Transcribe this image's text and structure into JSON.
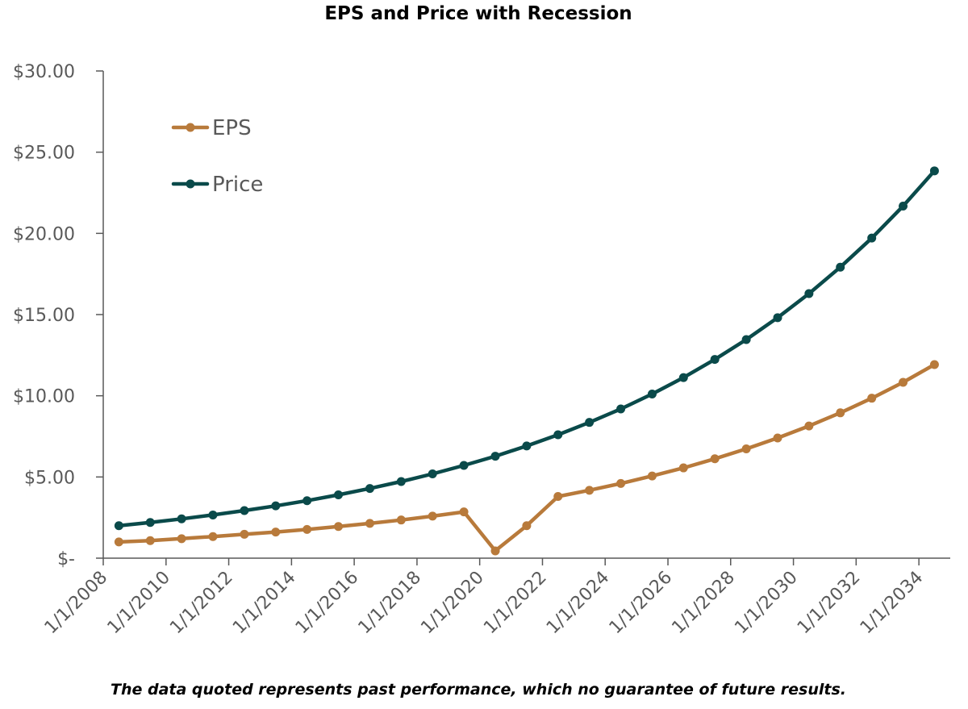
{
  "chart_data": {
    "type": "line",
    "title": "EPS and Price with Recession",
    "xlabel": "",
    "ylabel": "",
    "x_tick_labels": [
      "1/1/2008",
      "1/1/2010",
      "1/1/2012",
      "1/1/2014",
      "1/1/2016",
      "1/1/2018",
      "1/1/2020",
      "1/1/2022",
      "1/1/2024",
      "1/1/2026",
      "1/1/2028",
      "1/1/2030",
      "1/1/2032",
      "1/1/2034"
    ],
    "y_tick_labels": [
      "$-",
      "$5.00",
      "$10.00",
      "$15.00",
      "$20.00",
      "$25.00",
      "$30.00"
    ],
    "ylim": [
      0,
      30
    ],
    "xlim": [
      "1/1/2008",
      "1/1/2035"
    ],
    "grid": false,
    "legend_position": "top-left",
    "x": [
      "2008-07-01",
      "2009-07-01",
      "2010-07-01",
      "2011-07-01",
      "2012-07-01",
      "2013-07-01",
      "2014-07-01",
      "2015-07-01",
      "2016-07-01",
      "2017-07-01",
      "2018-07-01",
      "2019-07-01",
      "2020-07-01",
      "2021-07-01",
      "2022-07-01",
      "2023-07-01",
      "2024-07-01",
      "2025-07-01",
      "2026-07-01",
      "2027-07-01",
      "2028-07-01",
      "2029-07-01",
      "2030-07-01",
      "2031-07-01",
      "2032-07-01",
      "2033-07-01",
      "2034-07-01"
    ],
    "series": [
      {
        "name": "EPS",
        "color": "#B87A3B",
        "values": [
          1.0,
          1.08,
          1.2,
          1.33,
          1.47,
          1.61,
          1.77,
          1.95,
          2.14,
          2.35,
          2.59,
          2.85,
          0.45,
          2.0,
          3.8,
          4.18,
          4.6,
          5.06,
          5.56,
          6.12,
          6.73,
          7.4,
          8.14,
          8.95,
          9.85,
          10.83,
          11.92
        ]
      },
      {
        "name": "Price",
        "color": "#0A4A4A",
        "values": [
          2.0,
          2.2,
          2.42,
          2.66,
          2.93,
          3.22,
          3.54,
          3.9,
          4.29,
          4.72,
          5.19,
          5.71,
          6.28,
          6.91,
          7.6,
          8.36,
          9.19,
          10.11,
          11.12,
          12.24,
          13.46,
          14.81,
          16.29,
          17.92,
          19.71,
          21.68,
          23.85
        ]
      }
    ]
  },
  "footnote": "The data quoted represents past performance, which no guarantee of future results."
}
